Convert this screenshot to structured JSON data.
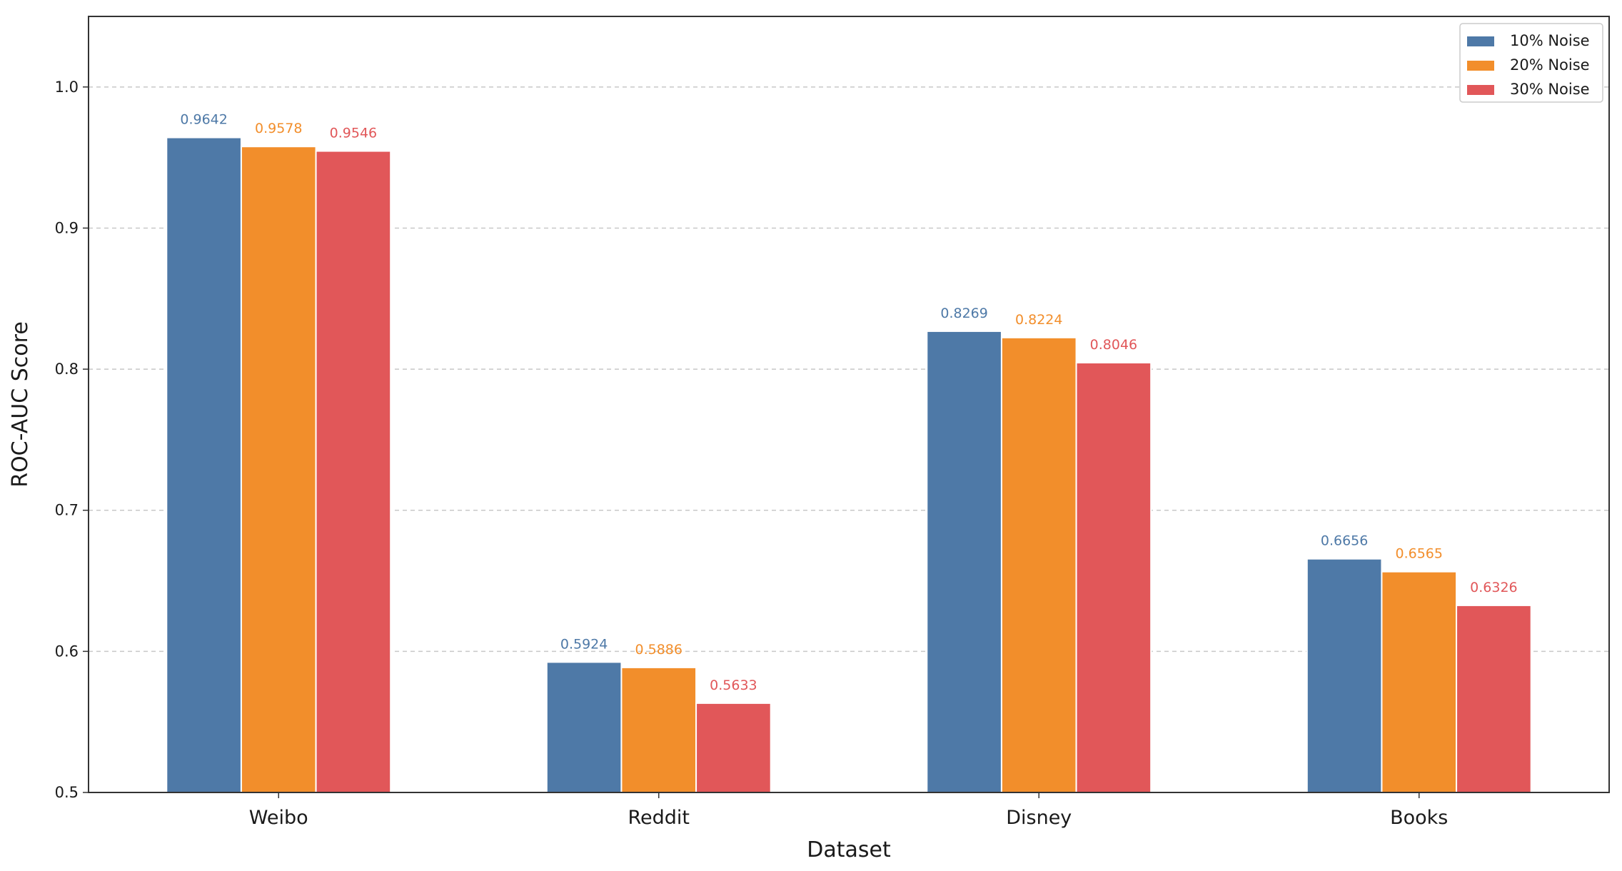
{
  "chart_data": {
    "type": "bar",
    "categories": [
      "Weibo",
      "Reddit",
      "Disney",
      "Books"
    ],
    "series": [
      {
        "name": "10% Noise",
        "color": "#4e79a7",
        "values": [
          0.9642,
          0.5924,
          0.8269,
          0.6656
        ]
      },
      {
        "name": "20% Noise",
        "color": "#f28e2b",
        "values": [
          0.9578,
          0.5886,
          0.8224,
          0.6565
        ]
      },
      {
        "name": "30% Noise",
        "color": "#e15759",
        "values": [
          0.9546,
          0.5633,
          0.8046,
          0.6326
        ]
      }
    ],
    "value_labels": [
      [
        "0.9642",
        "0.5924",
        "0.8269",
        "0.6656"
      ],
      [
        "0.9578",
        "0.5886",
        "0.8224",
        "0.6565"
      ],
      [
        "0.9546",
        "0.5633",
        "0.8046",
        "0.6326"
      ]
    ],
    "xlabel": "Dataset",
    "ylabel": "ROC-AUC Score",
    "ylim": [
      0.5,
      1.05
    ],
    "yticks": [
      0.5,
      0.6,
      0.7,
      0.8,
      0.9,
      1.0
    ],
    "ytick_labels": [
      "0.5",
      "0.6",
      "0.7",
      "0.8",
      "0.9",
      "1.0"
    ],
    "grid": "y-dashed",
    "legend_position": "top-right"
  }
}
